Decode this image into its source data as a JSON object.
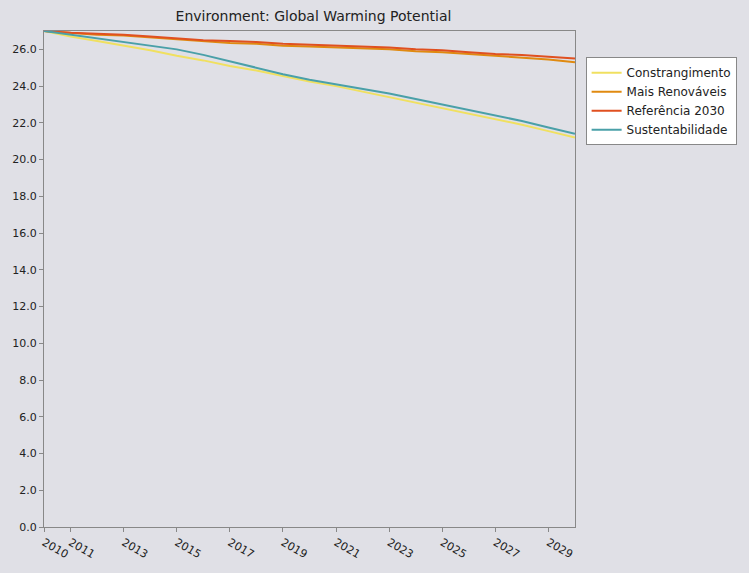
{
  "chart_data": {
    "type": "line",
    "title": "Environment: Global Warming Potential",
    "x": [
      2010,
      2011,
      2012,
      2013,
      2014,
      2015,
      2016,
      2017,
      2018,
      2019,
      2020,
      2021,
      2022,
      2023,
      2024,
      2025,
      2026,
      2027,
      2028,
      2029,
      2030
    ],
    "series": [
      {
        "name": "Constrangimento",
        "color": "#f0e060",
        "values": [
          27.0,
          26.7,
          26.45,
          26.2,
          25.95,
          25.65,
          25.4,
          25.1,
          24.85,
          24.55,
          24.25,
          24.0,
          23.7,
          23.4,
          23.1,
          22.8,
          22.5,
          22.2,
          21.9,
          21.55,
          21.2
        ]
      },
      {
        "name": "Mais Renováveis",
        "color": "#e08a10",
        "values": [
          27.0,
          26.9,
          26.8,
          26.75,
          26.65,
          26.55,
          26.45,
          26.35,
          26.3,
          26.2,
          26.15,
          26.1,
          26.05,
          26.0,
          25.9,
          25.85,
          25.75,
          25.65,
          25.55,
          25.45,
          25.3
        ]
      },
      {
        "name": "Referência 2030",
        "color": "#e05020",
        "values": [
          27.0,
          26.9,
          26.85,
          26.8,
          26.7,
          26.6,
          26.5,
          26.45,
          26.4,
          26.3,
          26.25,
          26.2,
          26.15,
          26.1,
          26.0,
          25.95,
          25.85,
          25.75,
          25.7,
          25.6,
          25.5
        ]
      },
      {
        "name": "Sustentabilidade",
        "color": "#4aa0a8",
        "values": [
          27.0,
          26.8,
          26.6,
          26.4,
          26.2,
          26.0,
          25.7,
          25.35,
          25.0,
          24.65,
          24.35,
          24.1,
          23.85,
          23.6,
          23.3,
          23.0,
          22.7,
          22.4,
          22.1,
          21.75,
          21.4
        ]
      }
    ],
    "xlim": [
      2010,
      2030
    ],
    "xticks": [
      2010,
      2011,
      2013,
      2015,
      2017,
      2019,
      2021,
      2023,
      2025,
      2027,
      2029
    ],
    "ylim": [
      0,
      27
    ],
    "yticks": [
      {
        "value": 0,
        "label": "0.0"
      },
      {
        "value": 2,
        "label": "2.0"
      },
      {
        "value": 4,
        "label": "4.0"
      },
      {
        "value": 6,
        "label": "6.0"
      },
      {
        "value": 8,
        "label": "8.0"
      },
      {
        "value": 10,
        "label": "10.0"
      },
      {
        "value": 12,
        "label": "12.0"
      },
      {
        "value": 14,
        "label": "14.0"
      },
      {
        "value": 16,
        "label": "16.0"
      },
      {
        "value": 18,
        "label": "18.0"
      },
      {
        "value": 20,
        "label": "20.0"
      },
      {
        "value": 22,
        "label": "22.0"
      },
      {
        "value": 24,
        "label": "24.0"
      },
      {
        "value": 26,
        "label": "26.0"
      }
    ],
    "grid": false,
    "legend": "right"
  }
}
